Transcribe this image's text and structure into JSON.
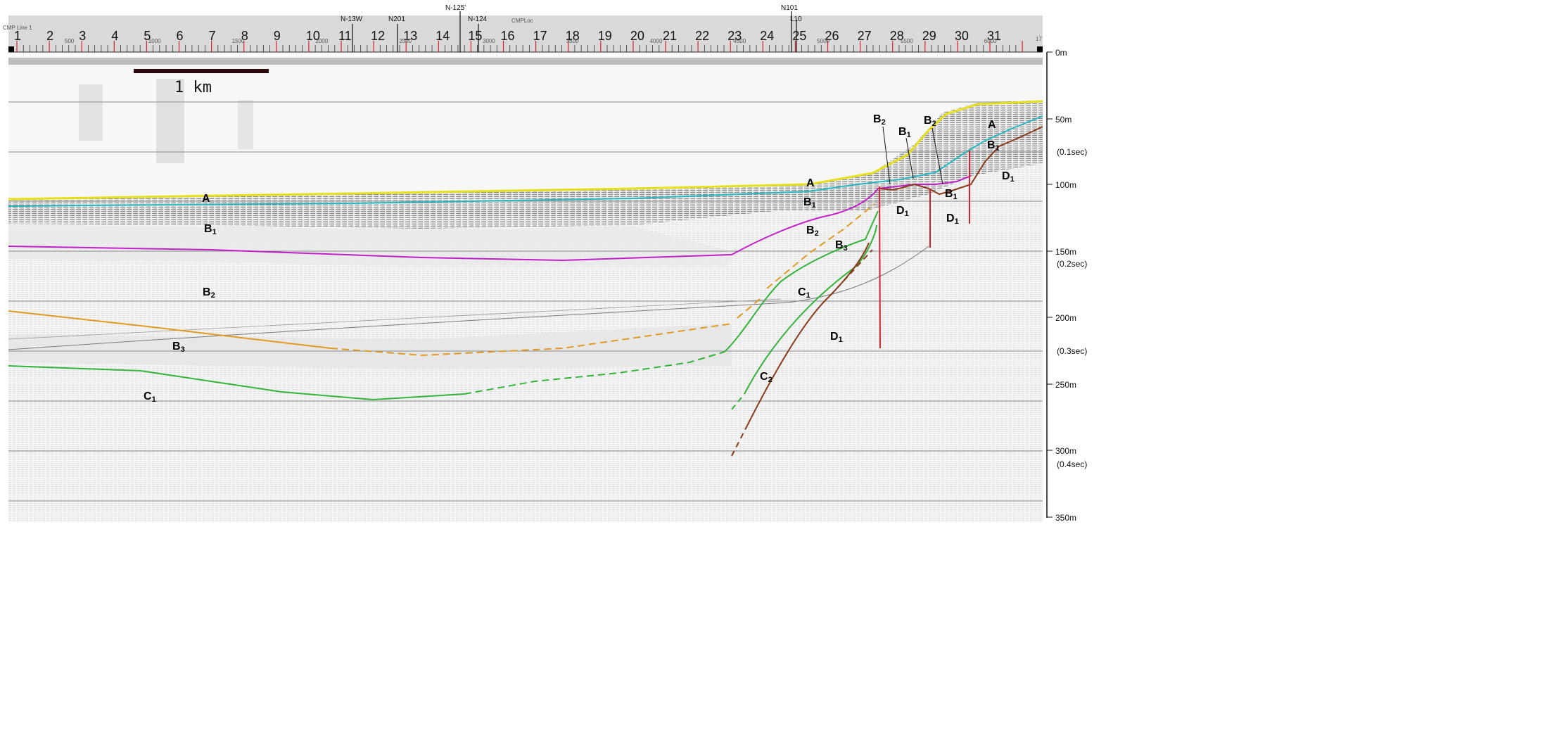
{
  "header": {
    "line_label": "CMP Line 1",
    "cmp_caption": "CMPLoc"
  },
  "ruler": {
    "major_ticks": [
      "1",
      "2",
      "3",
      "4",
      "5",
      "6",
      "7",
      "8",
      "9",
      "10",
      "11",
      "12",
      "13",
      "14",
      "15",
      "16",
      "17",
      "18",
      "19",
      "20",
      "21",
      "22",
      "23",
      "24",
      "25",
      "26",
      "27",
      "28",
      "29",
      "30",
      "31"
    ],
    "end_tick": "17",
    "small_labels": [
      "500",
      "1000",
      "1500",
      "2000",
      "2500",
      "3000",
      "3500",
      "4000",
      "4500",
      "5000",
      "5500",
      "6000"
    ]
  },
  "wells": [
    {
      "label": "N-13W"
    },
    {
      "label": "N201"
    },
    {
      "label": "N-125'"
    },
    {
      "label": "N-124"
    },
    {
      "label": "N101"
    },
    {
      "label": "L10"
    }
  ],
  "scale_bar": {
    "label": "1 km"
  },
  "depth_axis": [
    {
      "label": "0m",
      "sub": ""
    },
    {
      "label": "50m",
      "sub": ""
    },
    {
      "label": "",
      "sub": "(0.1sec)"
    },
    {
      "label": "100m",
      "sub": ""
    },
    {
      "label": "150m",
      "sub": "(0.2sec)"
    },
    {
      "label": "200m",
      "sub": ""
    },
    {
      "label": "",
      "sub": "(0.3sec)"
    },
    {
      "label": "250m",
      "sub": ""
    },
    {
      "label": "300m",
      "sub": "(0.4sec)"
    },
    {
      "label": "350m",
      "sub": ""
    }
  ],
  "units": [
    {
      "main": "A",
      "sub": ""
    },
    {
      "main": "B",
      "sub": "1"
    },
    {
      "main": "B",
      "sub": "2"
    },
    {
      "main": "B",
      "sub": "3"
    },
    {
      "main": "C",
      "sub": "1"
    },
    {
      "main": "A",
      "sub": ""
    },
    {
      "main": "B",
      "sub": "1"
    },
    {
      "main": "B",
      "sub": "2"
    },
    {
      "main": "B",
      "sub": "3"
    },
    {
      "main": "C",
      "sub": "1"
    },
    {
      "main": "C",
      "sub": "2"
    },
    {
      "main": "D",
      "sub": "1"
    },
    {
      "main": "B",
      "sub": "2"
    },
    {
      "main": "B",
      "sub": "1"
    },
    {
      "main": "B",
      "sub": "2"
    },
    {
      "main": "D",
      "sub": "1"
    },
    {
      "main": "B",
      "sub": "1"
    },
    {
      "main": "D",
      "sub": "1"
    },
    {
      "main": "A",
      "sub": ""
    },
    {
      "main": "B",
      "sub": "1"
    },
    {
      "main": "D",
      "sub": "1"
    }
  ],
  "colors": {
    "horizon_A": "#e6e01a",
    "horizon_B1": "#27b8c4",
    "horizon_B2": "#c020c8",
    "horizon_B3": "#e09a22",
    "horizon_C1": "#33b33a",
    "horizon_C2": "#8a3a1a",
    "fault": "#d4232e",
    "ruler_bg": "#d9d9d9",
    "grid": "#8a8a8a"
  }
}
